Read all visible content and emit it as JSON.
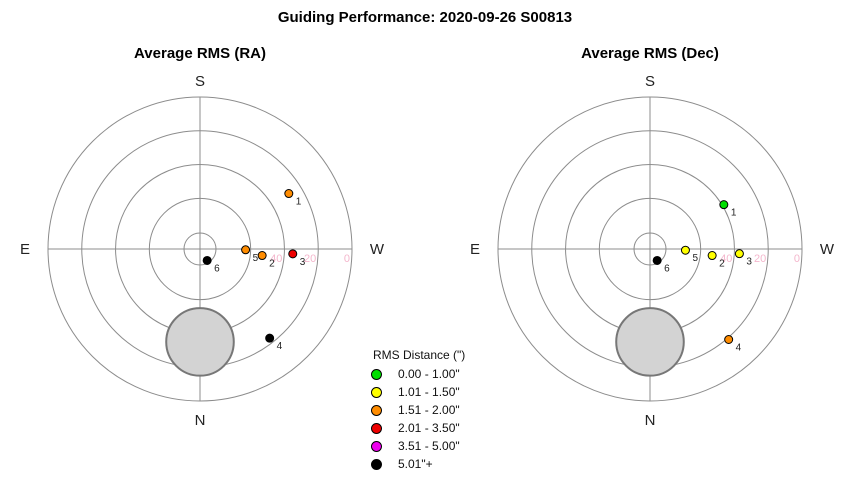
{
  "title": "Guiding Performance: 2020-09-26 S00813",
  "chart_data": [
    {
      "type": "scatter",
      "coordinate_system": "polar",
      "title": "Average RMS (RA)",
      "compass": {
        "top": "S",
        "bottom": "N",
        "left": "E",
        "right": "W"
      },
      "radial_axis": {
        "values": [
          90,
          60,
          40,
          20,
          0
        ],
        "tick_labels": [
          "40",
          "20",
          "0"
        ],
        "center_value": 90
      },
      "shaded_region": {
        "center_altitude": 35,
        "center_azimuth": 0,
        "radius_deg": 20
      },
      "points": [
        {
          "label": "1",
          "azimuth": 58,
          "altitude": 28,
          "color": "#ff8c00"
        },
        {
          "label": "2",
          "azimuth": 96,
          "altitude": 53,
          "color": "#ff8c00"
        },
        {
          "label": "3",
          "azimuth": 93,
          "altitude": 35,
          "color": "#ee0000"
        },
        {
          "label": "4",
          "azimuth": 142,
          "altitude": 23,
          "color": "#000000"
        },
        {
          "label": "5",
          "azimuth": 91,
          "altitude": 63,
          "color": "#ff8c00"
        },
        {
          "label": "6",
          "azimuth": 148,
          "altitude": 82,
          "color": "#000000"
        }
      ]
    },
    {
      "type": "scatter",
      "coordinate_system": "polar",
      "title": "Average RMS (Dec)",
      "compass": {
        "top": "S",
        "bottom": "N",
        "left": "E",
        "right": "W"
      },
      "radial_axis": {
        "values": [
          90,
          60,
          40,
          20,
          0
        ],
        "tick_labels": [
          "40",
          "20",
          "0"
        ],
        "center_value": 90
      },
      "shaded_region": {
        "center_altitude": 35,
        "center_azimuth": 0,
        "radius_deg": 20
      },
      "points": [
        {
          "label": "1",
          "azimuth": 59,
          "altitude": 39,
          "color": "#00e000"
        },
        {
          "label": "2",
          "azimuth": 96,
          "altitude": 53,
          "color": "#ffff00"
        },
        {
          "label": "3",
          "azimuth": 93,
          "altitude": 37,
          "color": "#ffff00"
        },
        {
          "label": "4",
          "azimuth": 139,
          "altitude": 19,
          "color": "#ff8c00"
        },
        {
          "label": "5",
          "azimuth": 92,
          "altitude": 69,
          "color": "#ffff00"
        },
        {
          "label": "6",
          "azimuth": 148,
          "altitude": 82,
          "color": "#000000"
        }
      ]
    }
  ],
  "legend": {
    "title": "RMS Distance (\")",
    "items": [
      {
        "label": "0.00 - 1.00\"",
        "color": "#00e000"
      },
      {
        "label": "1.01 - 1.50\"",
        "color": "#ffff00"
      },
      {
        "label": "1.51 - 2.00\"",
        "color": "#ff8c00"
      },
      {
        "label": "2.01 - 3.50\"",
        "color": "#ee0000"
      },
      {
        "label": "3.51 - 5.00\"",
        "color": "#ee00ee"
      },
      {
        "label": "5.01\"+",
        "color": "#000000"
      }
    ]
  }
}
